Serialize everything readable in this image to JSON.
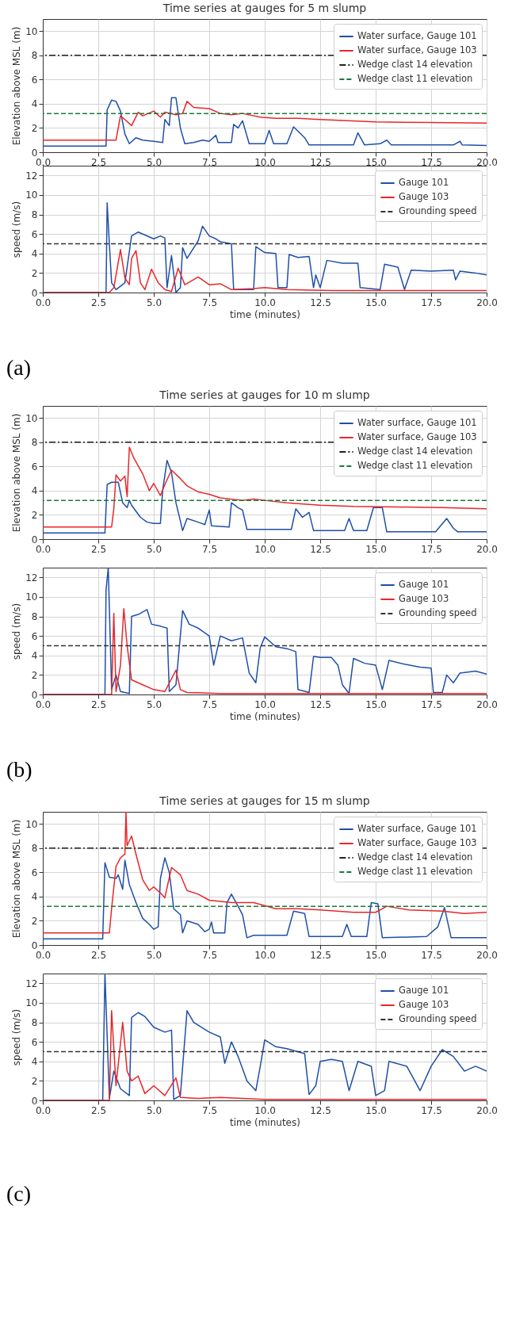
{
  "chart_data": [
    {
      "type": "line",
      "title": "Time series at gauges for 5 m slump",
      "ylabel": "Elevation above MSL (m)",
      "xlim": [
        0,
        20
      ],
      "xticks": [
        {
          "value": 0,
          "label": "0.0"
        },
        {
          "value": 2.5,
          "label": "2.5"
        },
        {
          "value": 5,
          "label": "5.0"
        },
        {
          "value": 7.5,
          "label": "7.5"
        },
        {
          "value": 10,
          "label": "10.0"
        },
        {
          "value": 12.5,
          "label": "12.5"
        },
        {
          "value": 15,
          "label": "15.0"
        },
        {
          "value": 17.5,
          "label": "17.5"
        },
        {
          "value": 20,
          "label": "20.0"
        }
      ],
      "ylim": [
        0,
        11
      ],
      "yticks": [
        0,
        2,
        4,
        6,
        8,
        10
      ],
      "grid": true,
      "legend": "top right",
      "series": [
        {
          "name": "Water surface, Gauge 101",
          "color": "#1f4fa8",
          "x": [
            0,
            2.85,
            2.9,
            3.1,
            3.3,
            3.5,
            3.7,
            3.9,
            4.2,
            4.5,
            5.0,
            5.4,
            5.5,
            5.7,
            5.8,
            6.0,
            6.2,
            6.4,
            6.8,
            7.2,
            7.5,
            7.8,
            7.9,
            8.5,
            8.6,
            8.8,
            9.0,
            9.3,
            10.0,
            10.2,
            10.4,
            11.0,
            11.3,
            11.8,
            12.0,
            14.0,
            14.2,
            14.5,
            15.2,
            15.5,
            15.7,
            17.5,
            18.5,
            18.8,
            18.9,
            20
          ],
          "values": [
            0.5,
            0.5,
            3.5,
            4.3,
            4.2,
            3.4,
            1.5,
            0.7,
            1.2,
            1.0,
            0.9,
            0.8,
            2.7,
            2.2,
            4.5,
            4.5,
            2.0,
            0.7,
            0.8,
            1.0,
            0.9,
            1.4,
            0.8,
            0.8,
            2.3,
            2.0,
            2.6,
            0.7,
            0.7,
            1.8,
            0.7,
            0.7,
            2.1,
            1.2,
            0.6,
            0.6,
            1.6,
            0.6,
            0.7,
            1.0,
            0.6,
            0.6,
            0.6,
            0.9,
            0.6,
            0.55
          ]
        },
        {
          "name": "Water surface, Gauge 103",
          "color": "#e8272a",
          "x": [
            0,
            3.3,
            3.5,
            3.7,
            4.0,
            4.3,
            4.5,
            5.0,
            5.3,
            5.5,
            6.0,
            6.3,
            6.5,
            6.8,
            7.5,
            8.0,
            8.5,
            9.0,
            9.8,
            10.5,
            11.5,
            12.5,
            15.0,
            17.5,
            20
          ],
          "values": [
            1.0,
            1.0,
            3.0,
            2.7,
            2.2,
            3.3,
            3.0,
            3.4,
            2.9,
            3.3,
            3.1,
            3.2,
            4.2,
            3.7,
            3.6,
            3.2,
            3.1,
            3.2,
            2.9,
            2.8,
            2.8,
            2.7,
            2.5,
            2.45,
            2.4
          ]
        }
      ],
      "ref_lines": [
        {
          "axis": "y",
          "value": 8,
          "label": "Wedge clast 14 elevation",
          "color": "#222222",
          "line_style": "dashdot"
        },
        {
          "axis": "y",
          "value": 3.2,
          "label": "Wedge clast 11 elevation",
          "color": "#1a7a3a",
          "line_style": "dashed"
        }
      ]
    },
    {
      "type": "line",
      "xlabel": "time (minutes)",
      "ylabel": "speed (m/s)",
      "xlim": [
        0,
        20
      ],
      "xticks": [
        {
          "value": 0,
          "label": "0.0"
        },
        {
          "value": 2.5,
          "label": "2.5"
        },
        {
          "value": 5,
          "label": "5.0"
        },
        {
          "value": 7.5,
          "label": "7.5"
        },
        {
          "value": 10,
          "label": "10.0"
        },
        {
          "value": 12.5,
          "label": "12.5"
        },
        {
          "value": 15,
          "label": "15.0"
        },
        {
          "value": 17.5,
          "label": "17.5"
        },
        {
          "value": 20,
          "label": "20.0"
        }
      ],
      "ylim": [
        0,
        13
      ],
      "yticks": [
        0,
        2,
        4,
        6,
        8,
        10,
        12
      ],
      "grid": true,
      "legend": "top right",
      "annotations": [
        "(a)"
      ],
      "series": [
        {
          "name": "Gauge 101",
          "color": "#1f4fa8",
          "x": [
            0,
            2.85,
            2.9,
            3.0,
            3.1,
            3.3,
            3.7,
            4.0,
            4.3,
            5.0,
            5.3,
            5.5,
            5.6,
            5.8,
            6.0,
            6.2,
            6.3,
            6.5,
            7.0,
            7.2,
            7.5,
            7.8,
            8.0,
            8.5,
            8.6,
            9.5,
            9.6,
            10.0,
            10.5,
            10.6,
            11.0,
            11.1,
            11.5,
            12.0,
            12.2,
            12.3,
            12.5,
            12.8,
            13.5,
            14.2,
            14.3,
            15.2,
            15.4,
            16.0,
            16.3,
            16.6,
            17.5,
            18.5,
            18.6,
            18.8,
            19.5,
            20
          ],
          "values": [
            0,
            0,
            9.2,
            5.0,
            1.0,
            0.3,
            1.0,
            5.8,
            6.2,
            5.5,
            5.8,
            5.6,
            0.5,
            3.8,
            0,
            0.5,
            4.6,
            3.5,
            5.3,
            6.8,
            5.8,
            5.5,
            5.2,
            5.0,
            0.3,
            0.3,
            4.7,
            4.1,
            4.0,
            0.5,
            0.5,
            3.9,
            3.6,
            3.7,
            0.5,
            1.8,
            0.5,
            3.3,
            3.0,
            3.0,
            0.5,
            0.3,
            2.9,
            2.6,
            0.3,
            2.3,
            2.2,
            2.3,
            1.3,
            2.2,
            2.0,
            1.8
          ]
        },
        {
          "name": "Gauge 103",
          "color": "#e8272a",
          "x": [
            0,
            3.0,
            3.2,
            3.5,
            3.7,
            3.9,
            4.0,
            4.2,
            4.4,
            4.6,
            4.9,
            5.2,
            5.5,
            5.8,
            6.1,
            6.4,
            7.0,
            7.5,
            8.0,
            8.5,
            9.5,
            10,
            11,
            13,
            20
          ],
          "values": [
            0,
            0,
            0.5,
            4.4,
            1.5,
            0.8,
            3.5,
            4.3,
            1.0,
            0.3,
            2.4,
            1.0,
            0.3,
            0.1,
            2.5,
            0.8,
            1.6,
            0.8,
            0.9,
            0.3,
            0.4,
            0.5,
            0.3,
            0.2,
            0.2
          ]
        }
      ],
      "ref_lines": [
        {
          "axis": "y",
          "value": 5,
          "label": "Grounding speed",
          "color": "#333333",
          "line_style": "dashed"
        }
      ]
    },
    {
      "type": "line",
      "title": "Time series at gauges for 10 m slump",
      "ylabel": "Elevation above MSL (m)",
      "xlim": [
        0,
        20
      ],
      "xticks": [
        {
          "value": 0,
          "label": "0.0"
        },
        {
          "value": 2.5,
          "label": "2.5"
        },
        {
          "value": 5,
          "label": "5.0"
        },
        {
          "value": 7.5,
          "label": "7.5"
        },
        {
          "value": 10,
          "label": "10.0"
        },
        {
          "value": 12.5,
          "label": "12.5"
        },
        {
          "value": 15,
          "label": "15.0"
        },
        {
          "value": 17.5,
          "label": "17.5"
        },
        {
          "value": 20,
          "label": "20.0"
        }
      ],
      "ylim": [
        0,
        11
      ],
      "yticks": [
        0,
        2,
        4,
        6,
        8,
        10
      ],
      "grid": true,
      "legend": "top right",
      "series": [
        {
          "name": "Water surface, Gauge 101",
          "color": "#1f4fa8",
          "x": [
            0,
            2.8,
            2.9,
            3.1,
            3.4,
            3.6,
            3.8,
            3.9,
            4.0,
            4.4,
            4.7,
            5.0,
            5.3,
            5.4,
            5.6,
            5.8,
            6.0,
            6.2,
            6.3,
            6.5,
            7.0,
            7.3,
            7.5,
            7.6,
            8.4,
            8.5,
            8.8,
            9.0,
            9.2,
            9.5,
            10,
            11.2,
            11.4,
            11.7,
            12.0,
            12.2,
            13.6,
            13.8,
            14.0,
            14.6,
            14.9,
            15.3,
            15.5,
            17.7,
            18.2,
            18.5,
            18.7,
            20
          ],
          "values": [
            0.5,
            0.5,
            4.5,
            4.7,
            4.7,
            3.0,
            2.6,
            3.2,
            2.8,
            1.8,
            1.4,
            1.3,
            1.3,
            4.0,
            6.5,
            5.5,
            3.0,
            1.5,
            0.7,
            1.7,
            1.4,
            1.2,
            2.4,
            1.1,
            1.0,
            3.0,
            2.6,
            2.4,
            0.8,
            0.8,
            0.8,
            0.8,
            2.5,
            1.8,
            2.2,
            0.7,
            0.7,
            1.7,
            0.7,
            0.7,
            2.6,
            2.6,
            0.6,
            0.6,
            1.7,
            0.9,
            0.6,
            0.6
          ]
        },
        {
          "name": "Water surface, Gauge 103",
          "color": "#e8272a",
          "x": [
            0,
            3.1,
            3.2,
            3.3,
            3.5,
            3.7,
            3.8,
            3.9,
            4.1,
            4.5,
            4.8,
            5.0,
            5.3,
            5.5,
            5.8,
            6.2,
            6.5,
            7.0,
            7.5,
            8.0,
            9.0,
            9.5,
            10,
            11,
            12.5,
            14,
            16,
            18,
            20
          ],
          "values": [
            1.0,
            1.0,
            2.5,
            5.3,
            4.8,
            5.2,
            3.5,
            7.6,
            6.7,
            5.4,
            4.0,
            4.6,
            3.6,
            4.5,
            5.7,
            5.0,
            4.4,
            3.9,
            3.7,
            3.4,
            3.2,
            3.3,
            3.2,
            3.0,
            2.8,
            2.7,
            2.65,
            2.6,
            2.5
          ]
        }
      ],
      "ref_lines": [
        {
          "axis": "y",
          "value": 8,
          "label": "Wedge clast 14 elevation",
          "color": "#222222",
          "line_style": "dashdot"
        },
        {
          "axis": "y",
          "value": 3.2,
          "label": "Wedge clast 11 elevation",
          "color": "#1a7a3a",
          "line_style": "dashed"
        }
      ]
    },
    {
      "type": "line",
      "xlabel": "time (minutes)",
      "ylabel": "speed (m/s)",
      "xlim": [
        0,
        20
      ],
      "xticks": [
        {
          "value": 0,
          "label": "0.0"
        },
        {
          "value": 2.5,
          "label": "2.5"
        },
        {
          "value": 5,
          "label": "5.0"
        },
        {
          "value": 7.5,
          "label": "7.5"
        },
        {
          "value": 10,
          "label": "10.0"
        },
        {
          "value": 12.5,
          "label": "12.5"
        },
        {
          "value": 15,
          "label": "15.0"
        },
        {
          "value": 17.5,
          "label": "17.5"
        },
        {
          "value": 20,
          "label": "20.0"
        }
      ],
      "ylim": [
        0,
        13
      ],
      "yticks": [
        0,
        2,
        4,
        6,
        8,
        10,
        12
      ],
      "grid": true,
      "legend": "top right",
      "annotations": [
        "(b)"
      ],
      "series": [
        {
          "name": "Gauge 101",
          "color": "#1f4fa8",
          "x": [
            0,
            2.8,
            2.85,
            2.95,
            3.1,
            3.3,
            3.5,
            3.9,
            4.0,
            4.3,
            4.7,
            4.9,
            5.3,
            5.6,
            5.7,
            6.0,
            6.3,
            6.6,
            7.0,
            7.5,
            7.7,
            8.0,
            8.5,
            9.0,
            9.3,
            9.6,
            9.8,
            10.0,
            10.5,
            11,
            11.4,
            11.5,
            12.0,
            12.2,
            12.5,
            13.0,
            13.3,
            13.5,
            13.8,
            14.0,
            14.5,
            15,
            15.3,
            15.6,
            16.3,
            17.0,
            17.5,
            17.6,
            18.0,
            18.2,
            18.5,
            18.8,
            19.5,
            20
          ],
          "values": [
            0,
            0,
            10.7,
            13,
            0.5,
            2,
            0.3,
            0.1,
            8.0,
            8.2,
            8.7,
            7.2,
            7.0,
            6.8,
            0.3,
            1.0,
            8.6,
            7.2,
            6.8,
            6.0,
            3.0,
            6.0,
            5.5,
            5.8,
            2.2,
            1.2,
            4.8,
            5.9,
            4.9,
            4.7,
            4.4,
            0.5,
            0.2,
            3.9,
            3.8,
            3.8,
            3.0,
            1.0,
            0.1,
            3.7,
            3.2,
            3.0,
            0.5,
            3.5,
            3.1,
            2.8,
            2.7,
            0.2,
            0.2,
            2.0,
            1.2,
            2.2,
            2.4,
            2.1
          ]
        },
        {
          "name": "Gauge 103",
          "color": "#e8272a",
          "x": [
            0,
            3.1,
            3.2,
            3.3,
            3.5,
            3.65,
            3.8,
            4.0,
            4.5,
            5.0,
            5.5,
            6.0,
            6.2,
            6.5,
            8,
            20
          ],
          "values": [
            0,
            0,
            8.3,
            0.3,
            3.0,
            8.8,
            5.0,
            1.5,
            1.0,
            0.5,
            0.3,
            2.5,
            0.5,
            0.2,
            0.1,
            0.1
          ]
        }
      ],
      "ref_lines": [
        {
          "axis": "y",
          "value": 5,
          "label": "Grounding speed",
          "color": "#333333",
          "line_style": "dashed"
        }
      ]
    },
    {
      "type": "line",
      "title": "Time series at gauges for 15 m slump",
      "ylabel": "Elevation above MSL (m)",
      "xlim": [
        0,
        20
      ],
      "xticks": [
        {
          "value": 0,
          "label": "0.0"
        },
        {
          "value": 2.5,
          "label": "2.5"
        },
        {
          "value": 5,
          "label": "5.0"
        },
        {
          "value": 7.5,
          "label": "7.5"
        },
        {
          "value": 10,
          "label": "10.0"
        },
        {
          "value": 12.5,
          "label": "12.5"
        },
        {
          "value": 15,
          "label": "15.0"
        },
        {
          "value": 17.5,
          "label": "17.5"
        },
        {
          "value": 20,
          "label": "20.0"
        }
      ],
      "ylim": [
        0,
        11
      ],
      "yticks": [
        0,
        2,
        4,
        6,
        8,
        10
      ],
      "grid": true,
      "legend": "top right",
      "series": [
        {
          "name": "Water surface, Gauge 101",
          "color": "#1f4fa8",
          "x": [
            0,
            2.7,
            2.8,
            3.0,
            3.3,
            3.4,
            3.6,
            3.7,
            3.9,
            4.2,
            4.5,
            4.8,
            5.0,
            5.2,
            5.3,
            5.5,
            5.7,
            5.9,
            6.2,
            6.3,
            6.5,
            7.0,
            7.3,
            7.5,
            7.6,
            7.7,
            8.2,
            8.3,
            8.5,
            8.8,
            9.0,
            9.2,
            9.5,
            10,
            11,
            11.3,
            11.8,
            12.0,
            13.5,
            13.7,
            13.9,
            14.6,
            14.8,
            15.1,
            15.3,
            17.3,
            17.8,
            18.1,
            18.4,
            20
          ],
          "values": [
            0.5,
            0.5,
            6.8,
            5.6,
            5.5,
            5.8,
            4.6,
            7.0,
            5.0,
            3.5,
            2.2,
            1.7,
            1.3,
            1.5,
            5.5,
            7.2,
            6.0,
            3.0,
            2.5,
            1.0,
            2.0,
            1.7,
            1.1,
            1.3,
            1.9,
            1.0,
            1.0,
            3.5,
            4.2,
            3.2,
            2.5,
            0.6,
            0.8,
            0.8,
            0.8,
            2.8,
            2.6,
            0.7,
            0.7,
            1.7,
            0.7,
            0.7,
            3.5,
            3.4,
            0.6,
            0.7,
            1.5,
            3.1,
            0.6,
            0.6
          ]
        },
        {
          "name": "Water surface, Gauge 103",
          "color": "#e8272a",
          "x": [
            0,
            3.0,
            3.1,
            3.3,
            3.5,
            3.7,
            3.75,
            3.8,
            4.0,
            4.2,
            4.5,
            4.8,
            5.0,
            5.3,
            5.5,
            5.8,
            6.2,
            6.5,
            7.0,
            7.5,
            8.5,
            9.5,
            10.5,
            11.5,
            12.5,
            14.0,
            15.0,
            15.5,
            16.5,
            18,
            19,
            20
          ],
          "values": [
            1.0,
            1.0,
            3.0,
            6.5,
            7.2,
            7.5,
            11,
            8.2,
            9.0,
            7.5,
            5.4,
            4.5,
            4.8,
            4.3,
            3.9,
            6.4,
            5.8,
            4.5,
            4.2,
            3.7,
            3.5,
            3.5,
            3.0,
            3.0,
            2.9,
            2.7,
            2.7,
            3.2,
            2.9,
            2.8,
            2.6,
            2.7
          ]
        }
      ],
      "ref_lines": [
        {
          "axis": "y",
          "value": 8,
          "label": "Wedge clast 14 elevation",
          "color": "#222222",
          "line_style": "dashdot"
        },
        {
          "axis": "y",
          "value": 3.2,
          "label": "Wedge clast 11 elevation",
          "color": "#1a7a3a",
          "line_style": "dashed"
        }
      ]
    },
    {
      "type": "line",
      "xlabel": "time (minutes)",
      "ylabel": "speed (m/s)",
      "xlim": [
        0,
        20
      ],
      "xticks": [
        {
          "value": 0,
          "label": "0.0"
        },
        {
          "value": 2.5,
          "label": "2.5"
        },
        {
          "value": 5,
          "label": "5.0"
        },
        {
          "value": 7.5,
          "label": "7.5"
        },
        {
          "value": 10,
          "label": "10.0"
        },
        {
          "value": 12.5,
          "label": "12.5"
        },
        {
          "value": 15,
          "label": "15.0"
        },
        {
          "value": 17.5,
          "label": "17.5"
        },
        {
          "value": 20,
          "label": "20.0"
        }
      ],
      "ylim": [
        0,
        13
      ],
      "yticks": [
        0,
        2,
        4,
        6,
        8,
        10,
        12
      ],
      "grid": true,
      "legend": "top right",
      "annotations": [
        "(c)"
      ],
      "series": [
        {
          "name": "Gauge 101",
          "color": "#1f4fa8",
          "x": [
            0,
            2.7,
            2.8,
            3.0,
            3.2,
            3.5,
            3.9,
            4.0,
            4.3,
            4.6,
            5.0,
            5.5,
            5.8,
            5.9,
            6.2,
            6.5,
            6.8,
            7.5,
            8.0,
            8.2,
            8.5,
            8.8,
            9.2,
            9.6,
            9.8,
            10.0,
            10.5,
            11,
            11.8,
            12.0,
            12.3,
            12.5,
            13,
            13.5,
            13.8,
            14.2,
            14.8,
            15.0,
            15.4,
            15.6,
            16.4,
            17.0,
            17.5,
            18.0,
            18.5,
            19,
            19.5,
            20
          ],
          "values": [
            0,
            0,
            13,
            0.2,
            3.0,
            1.2,
            0.5,
            8.5,
            9.0,
            8.6,
            7.5,
            7.0,
            7.2,
            0.1,
            0.5,
            9.2,
            8.0,
            7.0,
            6.5,
            3.8,
            6.0,
            4.5,
            2.0,
            1.0,
            3.5,
            6.2,
            5.5,
            5.3,
            4.8,
            0.6,
            1.5,
            4.0,
            4.2,
            4.0,
            1.0,
            4.0,
            3.5,
            0.5,
            1.0,
            4.0,
            3.5,
            1.0,
            3.5,
            5.2,
            4.5,
            3.0,
            3.5,
            3.0
          ]
        },
        {
          "name": "Gauge 103",
          "color": "#e8272a",
          "x": [
            0,
            3.0,
            3.1,
            3.3,
            3.6,
            3.8,
            4.0,
            4.3,
            4.6,
            5.0,
            5.5,
            6.0,
            6.2,
            7,
            8,
            10,
            20
          ],
          "values": [
            0,
            0,
            9.2,
            1.5,
            8.0,
            3.0,
            2.0,
            2.5,
            0.7,
            1.5,
            0.5,
            2.3,
            0.3,
            0.2,
            0.3,
            0.1,
            0.1
          ]
        }
      ],
      "ref_lines": [
        {
          "axis": "y",
          "value": 5,
          "label": "Grounding speed",
          "color": "#333333",
          "line_style": "dashed"
        }
      ]
    }
  ]
}
